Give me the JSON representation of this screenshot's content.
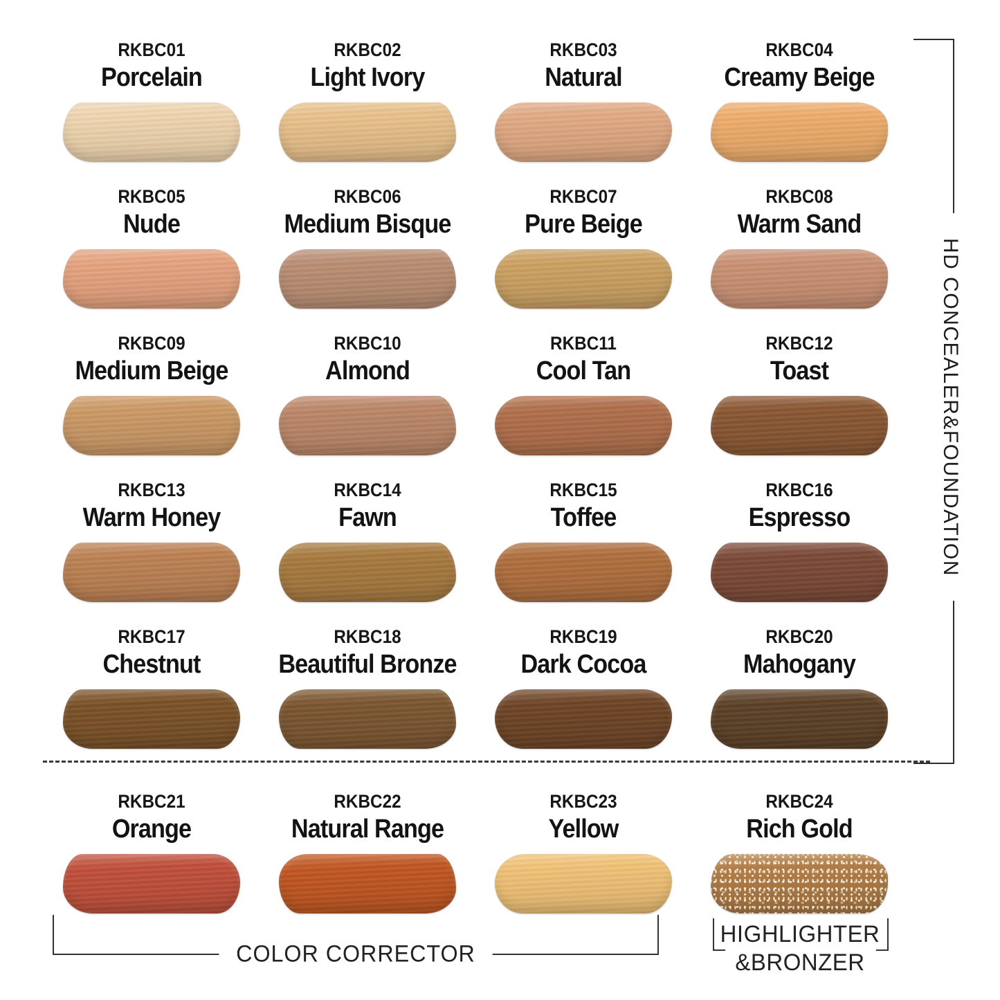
{
  "bracket_right": {
    "label": "HD CONCEALER&FOUNDATION"
  },
  "groups": {
    "color_corrector": "COLOR CORRECTOR",
    "highlighter_bronzer": {
      "line1": "HIGHLIGHTER",
      "line2": "&BRONZER"
    }
  },
  "swatches": [
    {
      "code": "RKBC01",
      "name": "Porcelain",
      "color": "#f1d6b0"
    },
    {
      "code": "RKBC02",
      "name": "Light Ivory",
      "color": "#eac28c"
    },
    {
      "code": "RKBC03",
      "name": "Natural",
      "color": "#e3ab84"
    },
    {
      "code": "RKBC04",
      "name": "Creamy Beige",
      "color": "#f0ae6c"
    },
    {
      "code": "RKBC05",
      "name": "Nude",
      "color": "#e7a480"
    },
    {
      "code": "RKBC06",
      "name": "Medium Bisque",
      "color": "#bb8f74"
    },
    {
      "code": "RKBC07",
      "name": "Pure Beige",
      "color": "#cda263"
    },
    {
      "code": "RKBC08",
      "name": "Warm Sand",
      "color": "#cb9275"
    },
    {
      "code": "RKBC09",
      "name": "Medium Beige",
      "color": "#cd9a66"
    },
    {
      "code": "RKBC10",
      "name": "Almond",
      "color": "#bd8869"
    },
    {
      "code": "RKBC11",
      "name": "Cool Tan",
      "color": "#b1704c"
    },
    {
      "code": "RKBC12",
      "name": "Toast",
      "color": "#8b5834"
    },
    {
      "code": "RKBC13",
      "name": "Warm Honey",
      "color": "#be8254"
    },
    {
      "code": "RKBC14",
      "name": "Fawn",
      "color": "#a97b40"
    },
    {
      "code": "RKBC15",
      "name": "Toffee",
      "color": "#b1703e"
    },
    {
      "code": "RKBC16",
      "name": "Espresso",
      "color": "#7c4a38"
    },
    {
      "code": "RKBC17",
      "name": "Chestnut",
      "color": "#7b5228"
    },
    {
      "code": "RKBC18",
      "name": "Beautiful Bronze",
      "color": "#7c5731"
    },
    {
      "code": "RKBC19",
      "name": "Dark Cocoa",
      "color": "#6f4526"
    },
    {
      "code": "RKBC20",
      "name": "Mahogany",
      "color": "#5d4127"
    },
    {
      "code": "RKBC21",
      "name": "Orange",
      "color": "#c1503b"
    },
    {
      "code": "RKBC22",
      "name": "Natural Range",
      "color": "#c25722"
    },
    {
      "code": "RKBC23",
      "name": "Yellow",
      "color": "#f2c377"
    },
    {
      "code": "RKBC24",
      "name": "Rich Gold",
      "color": "#b07d47",
      "sparkle": true
    }
  ]
}
